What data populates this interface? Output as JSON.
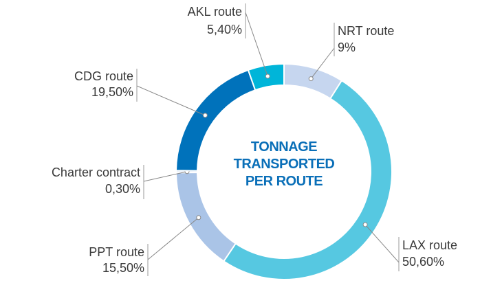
{
  "chart_data": {
    "type": "donut",
    "title": "TONNAGE TRANSPORTED PER ROUTE",
    "categories": [
      "NRT route",
      "LAX route",
      "PPT route",
      "Charter contract",
      "CDG route",
      "AKL route"
    ],
    "values": [
      9,
      50.6,
      15.5,
      0.3,
      19.5,
      5.4
    ],
    "value_labels": [
      "9%",
      "50,60%",
      "15,50%",
      "0,30%",
      "19,50%",
      "5,40%"
    ],
    "colors": [
      "#c6d6ef",
      "#56c8e1",
      "#aac4e7",
      "#dde7f5",
      "#0072bb",
      "#00b5d9"
    ]
  }
}
